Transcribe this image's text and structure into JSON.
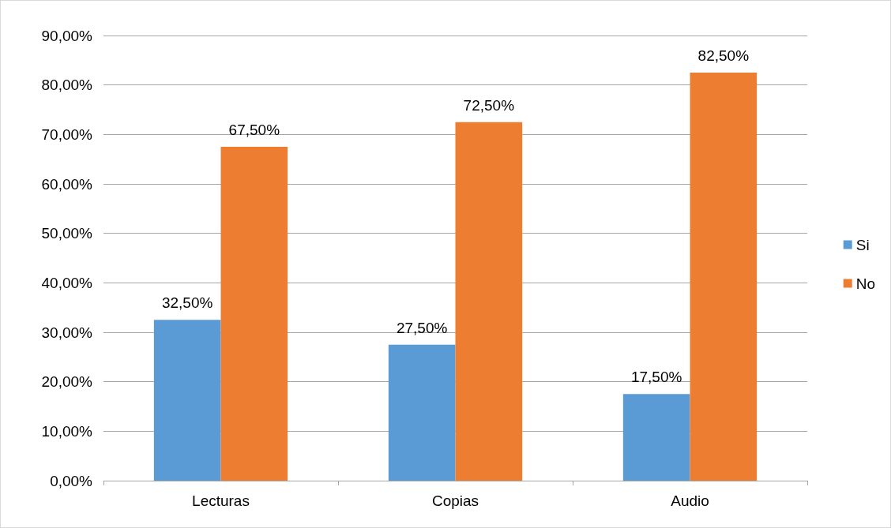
{
  "chart_data": {
    "type": "bar",
    "categories": [
      "Lecturas",
      "Copias",
      "Audio"
    ],
    "series": [
      {
        "name": "Si",
        "color": "#5b9bd5",
        "values": [
          32.5,
          27.5,
          17.5
        ],
        "value_labels": [
          "32,50%",
          "27,50%",
          "17,50%"
        ]
      },
      {
        "name": "No",
        "color": "#ed7d31",
        "values": [
          67.5,
          72.5,
          82.5
        ],
        "value_labels": [
          "67,50%",
          "72,50%",
          "82,50%"
        ]
      }
    ],
    "ylim": [
      0,
      90
    ],
    "yticks": [
      {
        "value": 0,
        "label": "0,00%"
      },
      {
        "value": 10,
        "label": "10,00%"
      },
      {
        "value": 20,
        "label": "20,00%"
      },
      {
        "value": 30,
        "label": "30,00%"
      },
      {
        "value": 40,
        "label": "40,00%"
      },
      {
        "value": 50,
        "label": "50,00%"
      },
      {
        "value": 60,
        "label": "60,00%"
      },
      {
        "value": 70,
        "label": "70,00%"
      },
      {
        "value": 80,
        "label": "80,00%"
      },
      {
        "value": 90,
        "label": "90,00%"
      }
    ],
    "grid": "y",
    "legend": "right"
  }
}
